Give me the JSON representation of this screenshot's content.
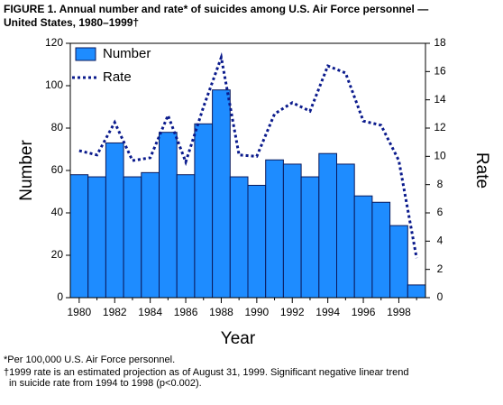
{
  "chart_data": {
    "type": "bar_line",
    "title_lines": [
      "FIGURE 1. Annual number and rate* of suicides among U.S. Air Force personnel —",
      "United States, 1980–1999†"
    ],
    "x_label": "Year",
    "y_label": "Number",
    "y2_label": "Rate",
    "categories": [
      "1980",
      null,
      "1982",
      null,
      "1984",
      null,
      "1986",
      null,
      "1988",
      null,
      "1990",
      null,
      "1992",
      null,
      "1994",
      null,
      "1996",
      null,
      "1998",
      null
    ],
    "series": [
      {
        "name": "Number",
        "type": "bar",
        "color": "#1e8cff",
        "values": [
          58,
          57,
          73,
          57,
          59,
          78,
          58,
          82,
          98,
          57,
          53,
          65,
          63,
          57,
          68,
          63,
          48,
          45,
          34,
          6
        ]
      },
      {
        "name": "Rate",
        "type": "line",
        "axis": "y2",
        "color": "#0a1a8c",
        "values": [
          10.4,
          10.1,
          12.4,
          9.7,
          9.9,
          12.9,
          9.6,
          13.5,
          17.0,
          10.1,
          10.0,
          13.0,
          13.8,
          13.2,
          16.4,
          15.9,
          12.5,
          12.2,
          9.7,
          2.8
        ]
      }
    ],
    "ylim": [
      0,
      120
    ],
    "yticks": [
      0,
      20,
      40,
      60,
      80,
      100,
      120
    ],
    "y2lim": [
      0,
      18
    ],
    "y2ticks": [
      0,
      2,
      4,
      6,
      8,
      10,
      12,
      14,
      16,
      18
    ],
    "legend": "top-left",
    "footnotes": [
      "*Per 100,000 U.S. Air Force personnel.",
      "†1999 rate is an estimated projection as of August 31, 1999. Significant negative linear trend",
      "in suicide rate from 1994 to 1998 (p<0.002)."
    ]
  }
}
